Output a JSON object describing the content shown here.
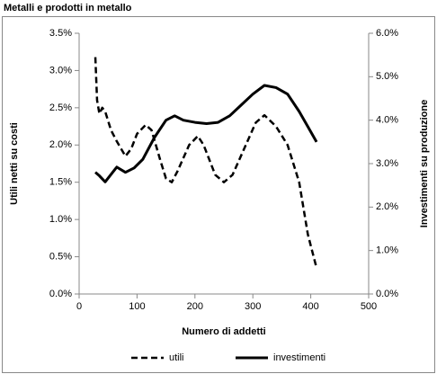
{
  "chart_data": {
    "type": "line",
    "title": "Metalli e prodotti in metallo",
    "x_label": "Numero di addetti",
    "y_label": "Utili netti su costi",
    "y2_label": "Investimenti su produzione",
    "xlim": [
      0,
      500
    ],
    "xticks": [
      0,
      100,
      200,
      300,
      400,
      500
    ],
    "ylim": [
      0,
      3.5
    ],
    "yticks": [
      {
        "value": 0,
        "label": "0.0%"
      },
      {
        "value": 0.5,
        "label": "0.5%"
      },
      {
        "value": 1,
        "label": "1.0%"
      },
      {
        "value": 1.5,
        "label": "1.5%"
      },
      {
        "value": 2,
        "label": "2.0%"
      },
      {
        "value": 2.5,
        "label": "2.5%"
      },
      {
        "value": 3,
        "label": "3.0%"
      },
      {
        "value": 3.5,
        "label": "3.5%"
      }
    ],
    "y2lim": [
      0,
      6
    ],
    "y2ticks": [
      {
        "value": 0,
        "label": "0.0%"
      },
      {
        "value": 1,
        "label": "1.0%"
      },
      {
        "value": 2,
        "label": "2.0%"
      },
      {
        "value": 3,
        "label": "3.0%"
      },
      {
        "value": 4,
        "label": "4.0%"
      },
      {
        "value": 5,
        "label": "5.0%"
      },
      {
        "value": 6,
        "label": "6.0%"
      }
    ],
    "series": [
      {
        "name": "utili",
        "color": "#000000",
        "dashed": true,
        "x": [
          28,
          31,
          35,
          40,
          45,
          55,
          65,
          80,
          90,
          100,
          115,
          125,
          140,
          150,
          160,
          170,
          190,
          205,
          215,
          235,
          250,
          265,
          285,
          305,
          320,
          340,
          360,
          380,
          395,
          410
        ],
        "values": [
          3.18,
          2.6,
          2.42,
          2.5,
          2.45,
          2.2,
          2.05,
          1.85,
          1.95,
          2.15,
          2.27,
          2.2,
          1.8,
          1.55,
          1.5,
          1.65,
          2.0,
          2.12,
          2.0,
          1.6,
          1.5,
          1.6,
          1.95,
          2.3,
          2.4,
          2.25,
          2.0,
          1.5,
          0.8,
          0.35
        ]
      },
      {
        "name": "investimenti",
        "color": "#000000",
        "dashed": false,
        "axis": "y2",
        "x": [
          28,
          35,
          45,
          55,
          65,
          80,
          95,
          110,
          130,
          150,
          165,
          180,
          200,
          220,
          240,
          260,
          280,
          300,
          320,
          340,
          360,
          380,
          395,
          410
        ],
        "values": [
          2.8,
          2.72,
          2.58,
          2.75,
          2.92,
          2.8,
          2.9,
          3.1,
          3.6,
          4.0,
          4.1,
          4.0,
          3.95,
          3.92,
          3.95,
          4.1,
          4.35,
          4.6,
          4.8,
          4.75,
          4.6,
          4.2,
          3.85,
          3.5
        ]
      }
    ]
  }
}
